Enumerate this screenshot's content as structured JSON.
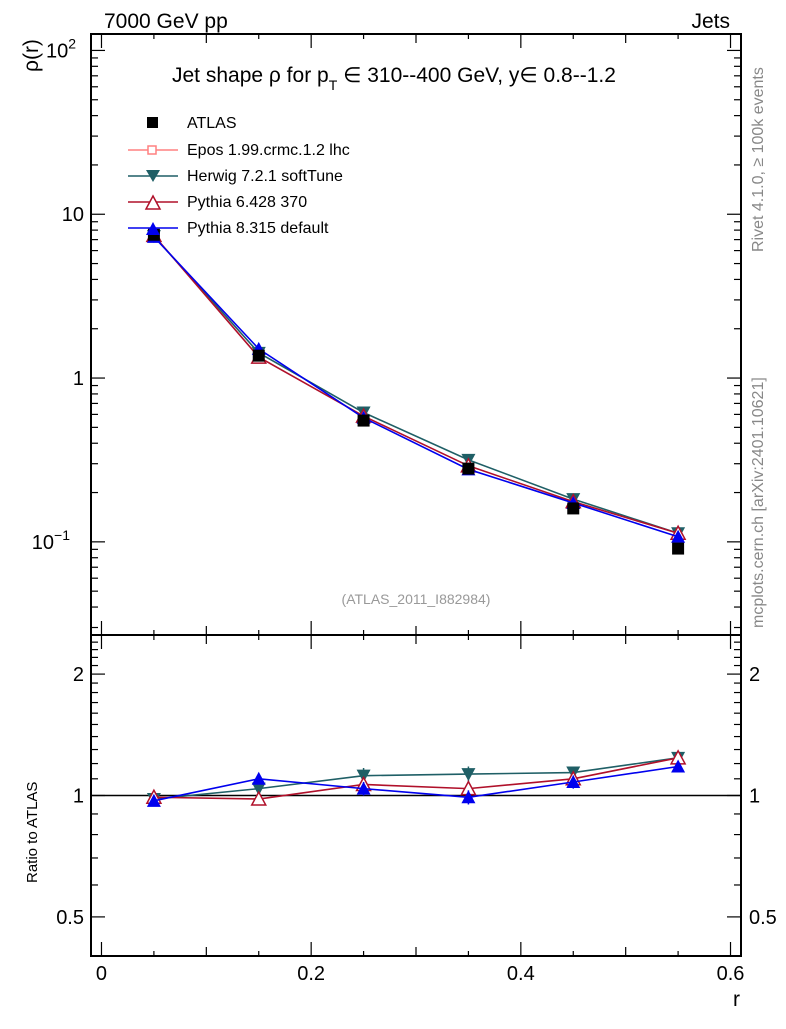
{
  "header": {
    "left": "7000 GeV pp",
    "right": "Jets"
  },
  "side_text": {
    "rivet": "Rivet 4.1.0, ≥ 100k events",
    "mcplots": "mcplots.cern.ch [arXiv:2401.10621]"
  },
  "chart_data": {
    "type": "line",
    "title": "Jet shape ρ for p_T ∈ 310--400 GeV, y∈ 0.8--1.2",
    "title_parts": {
      "a": "Jet shape ρ for p",
      "sub": "T",
      "b": " ∈ 310--400 GeV, y∈ 0.8--1.2"
    },
    "reference": "(ATLAS_2011_I882984)",
    "xlabel": "r",
    "ylabel": "ρ(r)",
    "ratio_ylabel": "Ratio to ATLAS",
    "xlim": [
      -0.01,
      0.61
    ],
    "ylim": [
      0.027,
      126
    ],
    "yscale": "log",
    "ratio_ylim": [
      0.4,
      2.5
    ],
    "x_ticks": [
      "0",
      "0.2",
      "0.4",
      "0.6"
    ],
    "x_tick_values": [
      0,
      0.2,
      0.4,
      0.6
    ],
    "y_ticks": [
      "10^-1",
      "1",
      "10",
      "10^2"
    ],
    "ratio_ticks": [
      "0.5",
      "1",
      "2"
    ],
    "x": [
      0.05,
      0.15,
      0.25,
      0.35,
      0.45,
      0.55
    ],
    "data": {
      "name": "ATLAS",
      "values": [
        7.5,
        1.37,
        0.55,
        0.28,
        0.16,
        0.091
      ]
    },
    "series": [
      {
        "name": "Epos 1.99.crmc.1.2 lhc",
        "color": "#ff8080",
        "marker": "open-cross",
        "ratio": []
      },
      {
        "name": "Herwig 7.2.1 softTune",
        "color": "#1f5f66",
        "marker": "triangle-down",
        "ratio": [
          0.98,
          1.04,
          1.12,
          1.13,
          1.14,
          1.24
        ],
        "err": [
          0.01,
          0.03,
          0.05,
          0.05,
          0.04,
          0.04
        ]
      },
      {
        "name": "Pythia 6.428 370",
        "color": "#b0102a",
        "marker": "open-triangle-up",
        "ratio": [
          0.99,
          0.98,
          1.065,
          1.04,
          1.1,
          1.24
        ],
        "err": [
          0.01,
          0.03,
          0.04,
          0.04,
          0.04,
          0.04
        ]
      },
      {
        "name": "Pythia 8.315 default",
        "color": "#0000ee",
        "marker": "triangle-up",
        "ratio": [
          0.97,
          1.1,
          1.04,
          0.99,
          1.08,
          1.18
        ],
        "err": [
          0.01,
          0.03,
          0.04,
          0.04,
          0.04,
          0.03
        ]
      }
    ]
  }
}
